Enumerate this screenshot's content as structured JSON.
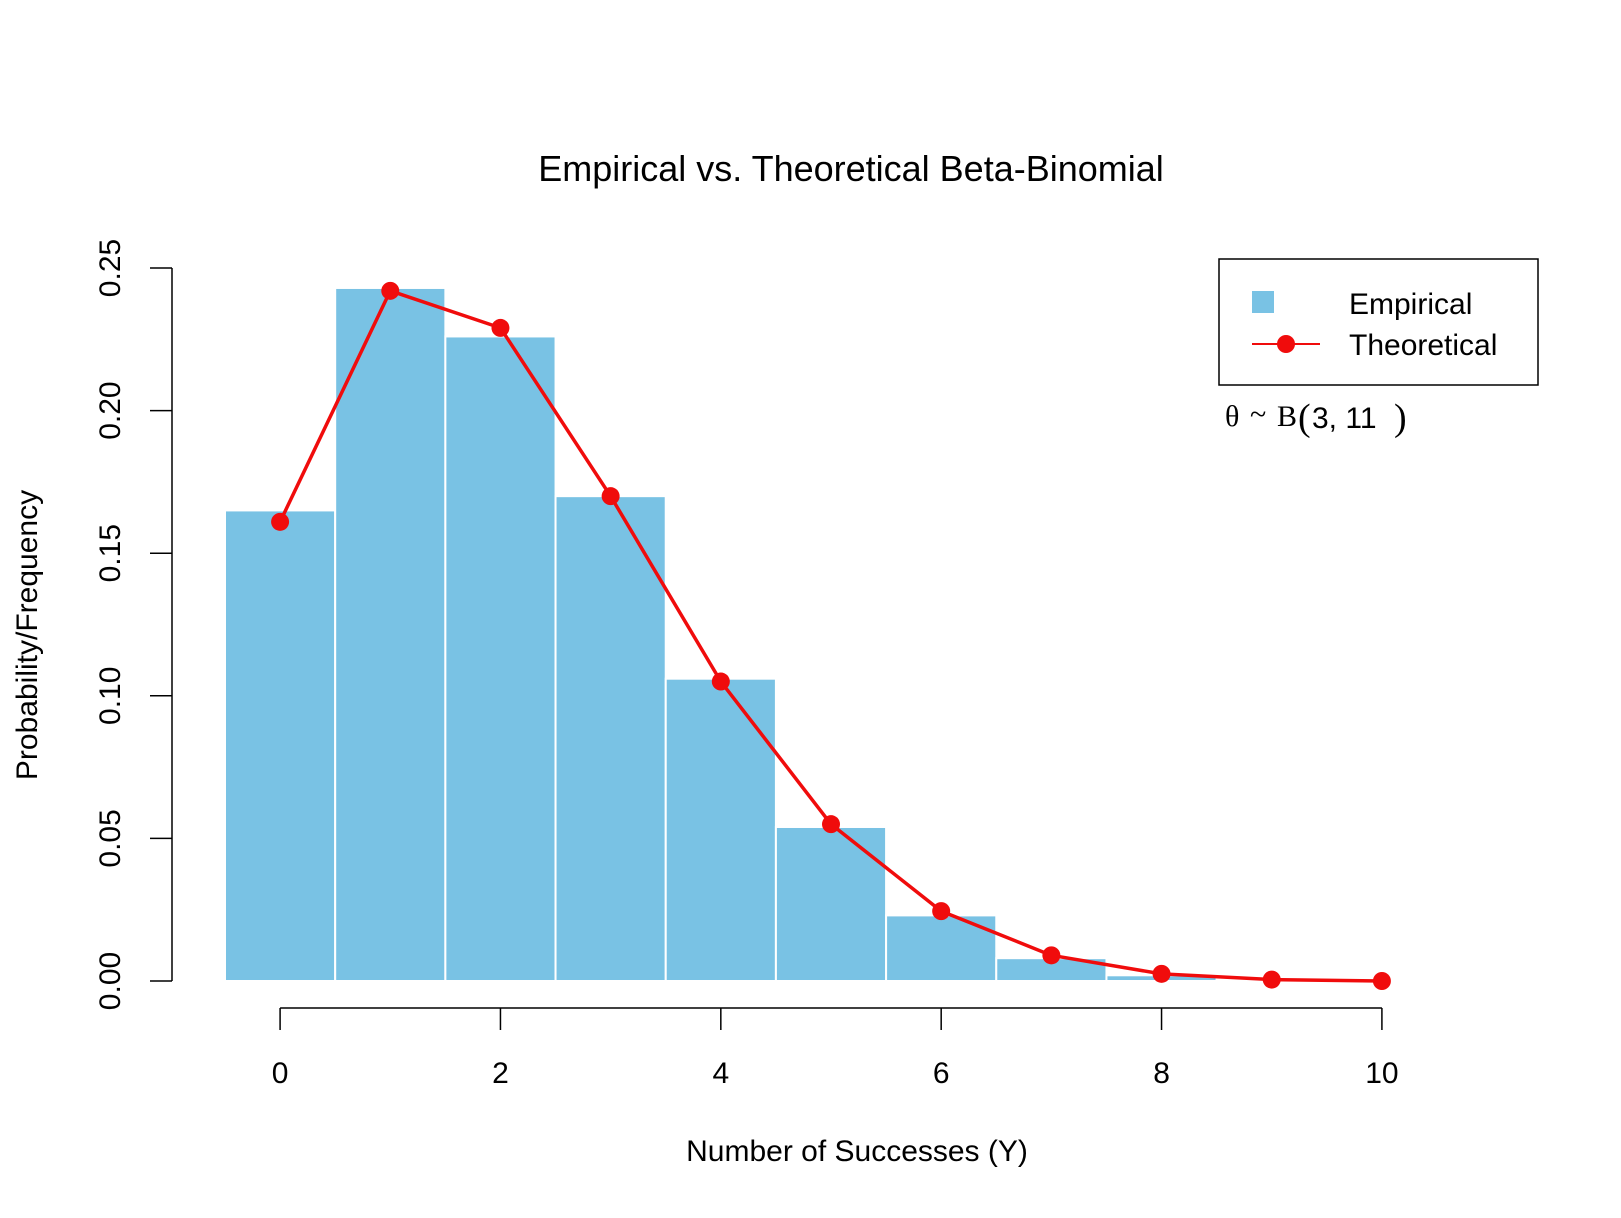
{
  "chart_data": {
    "type": "bar",
    "title": "Empirical vs. Theoretical Beta-Binomial",
    "xlabel": "Number of Successes (Y)",
    "ylabel": "Probability/Frequency",
    "xlim": [
      -0.5,
      10.5
    ],
    "ylim": [
      0,
      0.25
    ],
    "x_ticks": [
      0,
      2,
      4,
      6,
      8,
      10
    ],
    "x_tick_labels": [
      "0",
      "2",
      "4",
      "6",
      "8",
      "10"
    ],
    "y_ticks": [
      0,
      0.05,
      0.1,
      0.15,
      0.2,
      0.25
    ],
    "y_tick_labels": [
      "0.00",
      "0.05",
      "0.10",
      "0.15",
      "0.20",
      "0.25"
    ],
    "grid": false,
    "legend_position": "top-right",
    "annotation": {
      "theta": "θ",
      "tilde": "~",
      "dist": "B",
      "lparen": "(",
      "params": "3, 11",
      "rparen": ")"
    },
    "series": [
      {
        "name": "Empirical",
        "type": "bar",
        "color": "#79c2e4",
        "x": [
          0,
          1,
          2,
          3,
          4,
          5,
          6,
          7,
          8,
          9,
          10
        ],
        "values": [
          0.165,
          0.243,
          0.226,
          0.17,
          0.106,
          0.054,
          0.023,
          0.008,
          0.002,
          0.0005,
          0.0
        ]
      },
      {
        "name": "Theoretical",
        "type": "line",
        "color": "#f00c0c",
        "x": [
          0,
          1,
          2,
          3,
          4,
          5,
          6,
          7,
          8,
          9,
          10
        ],
        "values": [
          0.161,
          0.242,
          0.229,
          0.17,
          0.105,
          0.055,
          0.0245,
          0.009,
          0.0025,
          0.0005,
          0.0
        ]
      }
    ]
  }
}
